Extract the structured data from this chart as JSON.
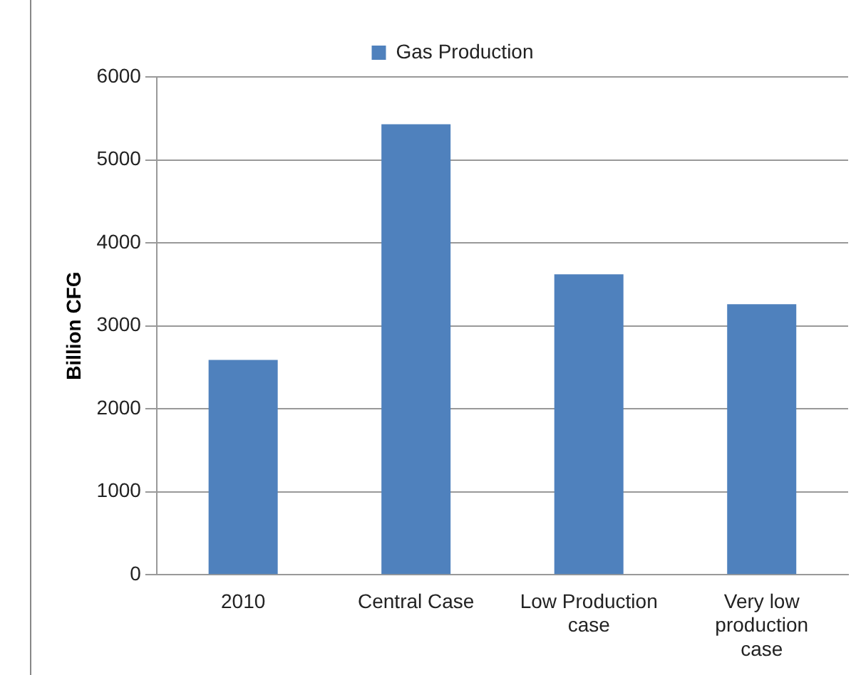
{
  "chart_data": {
    "type": "bar",
    "ylabel": "Billion CFG",
    "categories": [
      "2010",
      "Central Case",
      "Low Production case",
      "Very low production case"
    ],
    "series": [
      {
        "name": "Gas Production",
        "color": "#4f81bd",
        "values": [
          2590,
          5430,
          3620,
          3260
        ]
      }
    ],
    "ylim": [
      0,
      6000
    ],
    "yticks": [
      0,
      1000,
      2000,
      3000,
      4000,
      5000,
      6000
    ],
    "grid": "y",
    "legend": "top"
  }
}
